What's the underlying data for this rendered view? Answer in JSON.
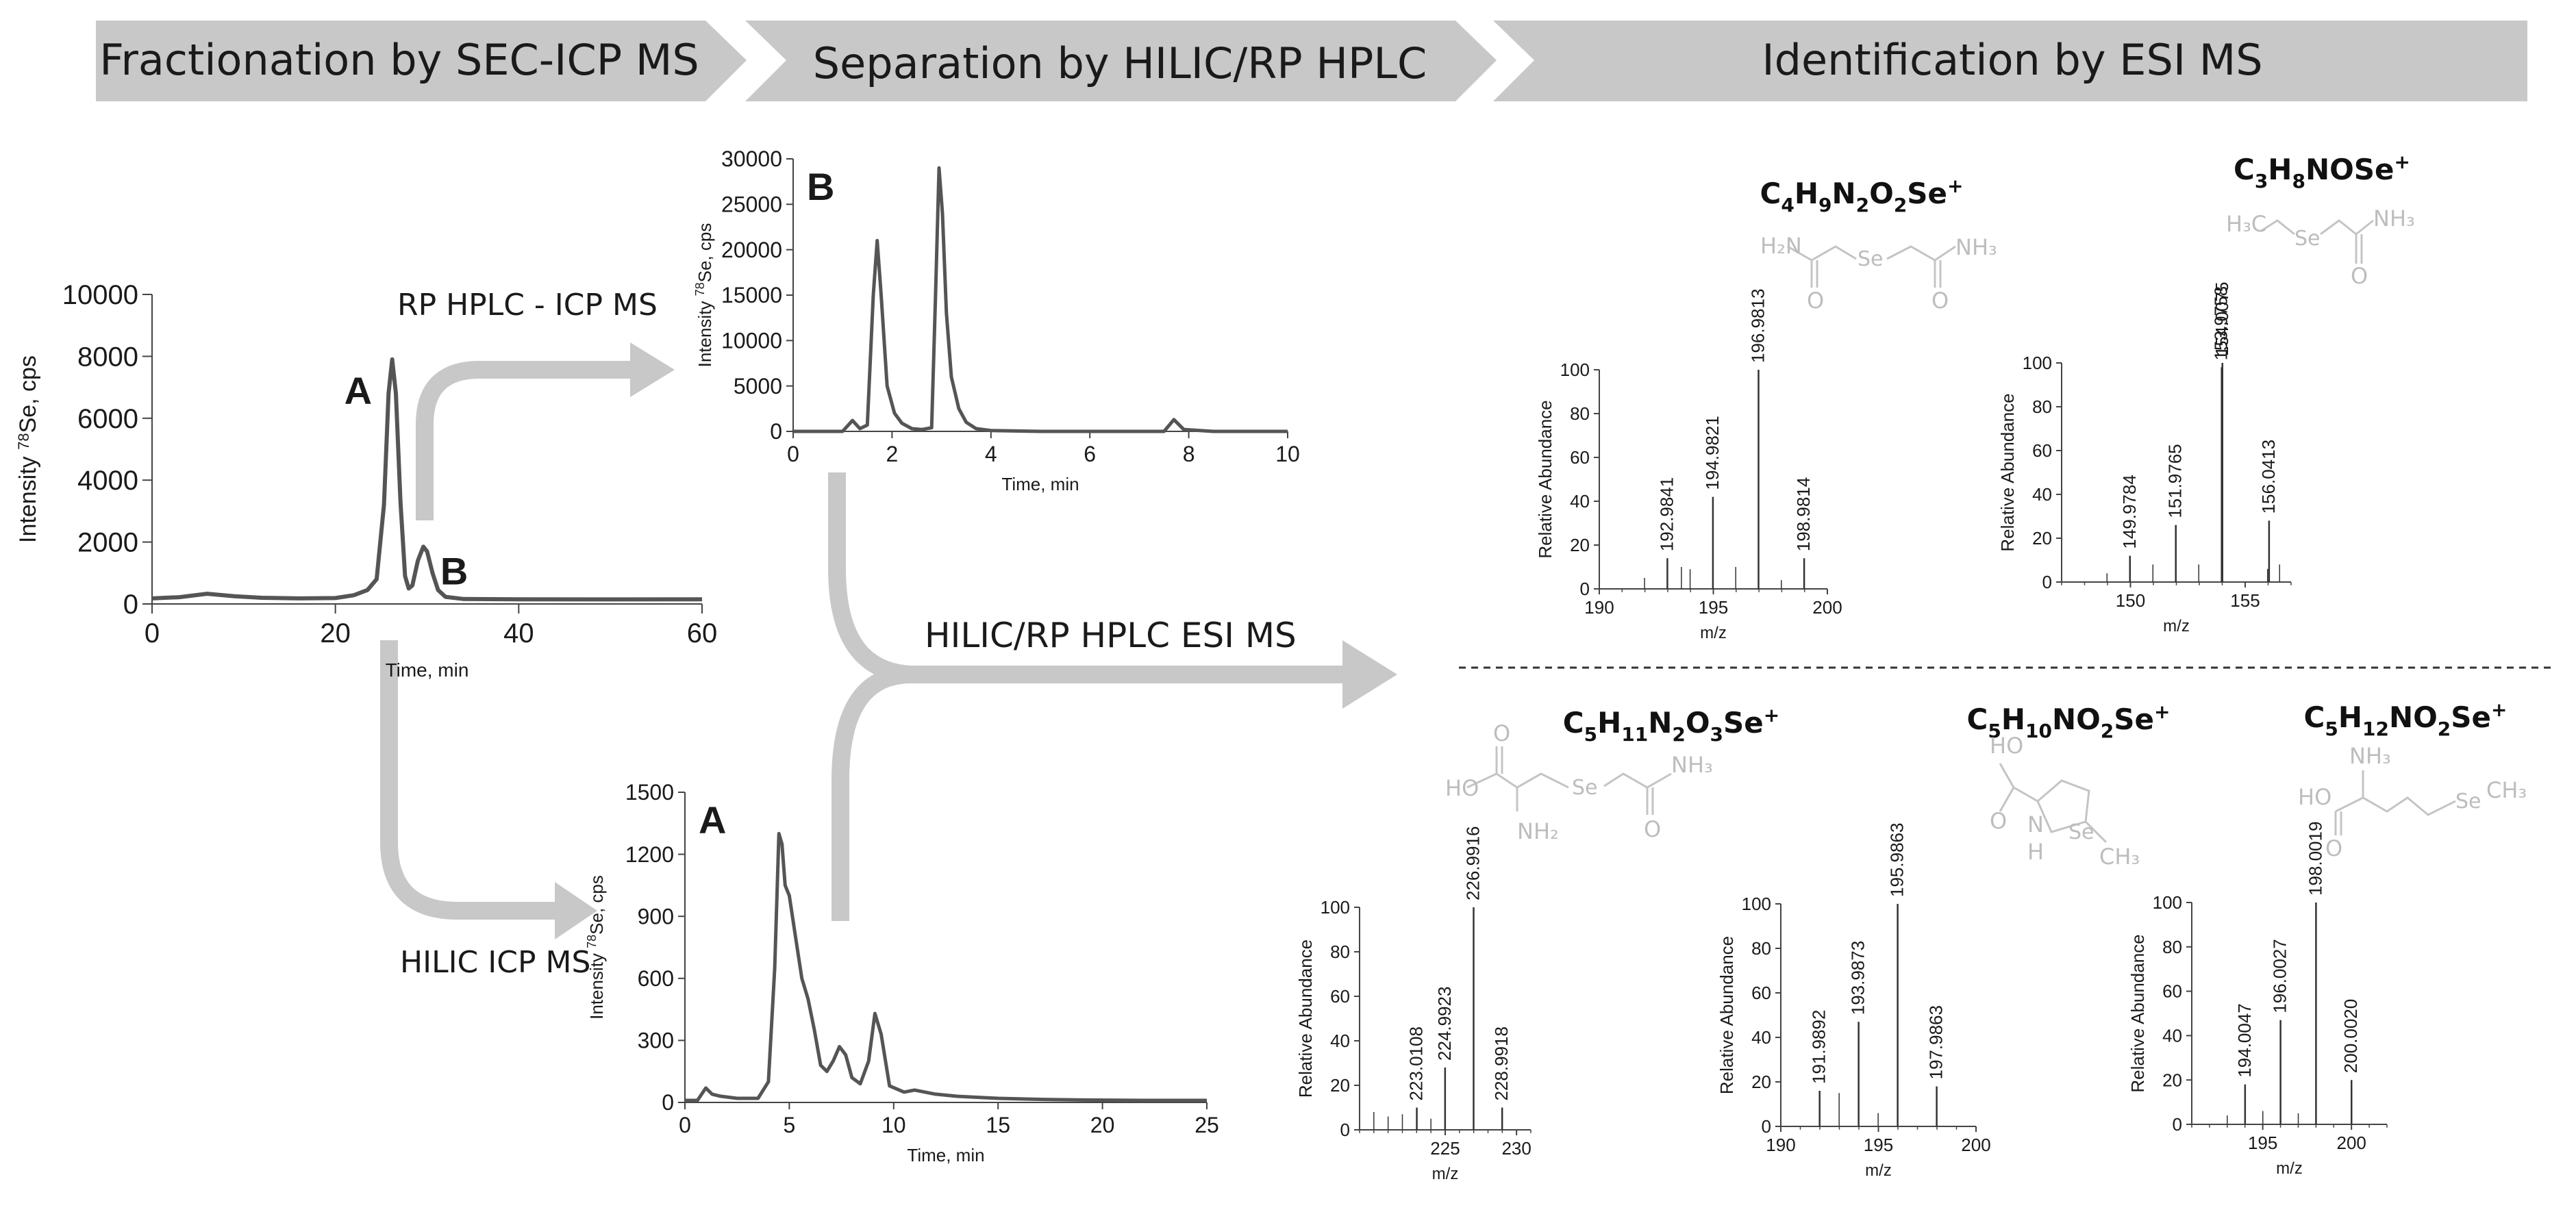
{
  "banner": {
    "steps": [
      "Fractionation by SEC-ICP MS",
      "Separation by HILIC/RP HPLC",
      "Identification by ESI MS"
    ]
  },
  "arrows": {
    "rp": "RP HPLC - ICP MS",
    "hilic": "HILIC ICP MS",
    "esi": "HILIC/RP HPLC ESI MS"
  },
  "chart_data": [
    {
      "id": "sec",
      "type": "line",
      "xlabel": "Time, min",
      "ylabel": "Intensity 78Se, cps",
      "xlim": [
        0,
        60
      ],
      "ylim": [
        0,
        10000
      ],
      "xticks": [
        0,
        20,
        40,
        60
      ],
      "yticks": [
        0,
        2000,
        4000,
        6000,
        8000,
        10000
      ],
      "peak_labels": [
        {
          "text": "A",
          "x": 26.2
        },
        {
          "text": "B",
          "x": 29.8
        }
      ],
      "series": [
        {
          "x": [
            0,
            3,
            6,
            9,
            12,
            16,
            20,
            22,
            23.5,
            24.5,
            25.3,
            25.8,
            26.2,
            26.6,
            27.1,
            27.6,
            28.0,
            28.4,
            29.0,
            29.6,
            30.0,
            30.6,
            31.2,
            32,
            34,
            40,
            50,
            60
          ],
          "y": [
            180,
            220,
            330,
            250,
            200,
            180,
            190,
            280,
            450,
            800,
            3200,
            6800,
            7900,
            6800,
            3300,
            900,
            500,
            600,
            1400,
            1850,
            1700,
            1000,
            450,
            230,
            160,
            150,
            145,
            150
          ]
        }
      ]
    },
    {
      "id": "rp",
      "type": "line",
      "xlabel": "Time, min",
      "ylabel": "Intensity 78Se, cps",
      "xlim": [
        0,
        10
      ],
      "ylim": [
        0,
        30000
      ],
      "xticks": [
        0,
        2,
        4,
        6,
        8,
        10
      ],
      "yticks": [
        0,
        5000,
        10000,
        15000,
        20000,
        25000,
        30000
      ],
      "panel_label": "B",
      "series": [
        {
          "x": [
            0,
            1.0,
            1.2,
            1.35,
            1.5,
            1.62,
            1.7,
            1.78,
            1.9,
            2.05,
            2.2,
            2.4,
            2.6,
            2.8,
            2.88,
            2.95,
            3.02,
            3.1,
            3.2,
            3.35,
            3.5,
            3.7,
            4.0,
            5,
            7.5,
            7.7,
            7.9,
            8.5,
            10
          ],
          "y": [
            0,
            0,
            1200,
            300,
            700,
            15000,
            21000,
            15000,
            5000,
            2000,
            900,
            300,
            200,
            400,
            15000,
            29000,
            24000,
            13000,
            6000,
            2500,
            1000,
            300,
            100,
            0,
            0,
            1300,
            200,
            0,
            0
          ]
        }
      ]
    },
    {
      "id": "hilic",
      "type": "line",
      "xlabel": "Time, min",
      "ylabel": "Intensity 78Se, cps",
      "xlim": [
        0,
        25
      ],
      "ylim": [
        0,
        1500
      ],
      "xticks": [
        0,
        5,
        10,
        15,
        20,
        25
      ],
      "yticks": [
        0,
        300,
        600,
        900,
        1200,
        1500
      ],
      "panel_label": "A",
      "series": [
        {
          "x": [
            0,
            0.6,
            1.0,
            1.3,
            1.7,
            2.5,
            3.5,
            4.0,
            4.3,
            4.5,
            4.65,
            4.8,
            5.0,
            5.3,
            5.6,
            5.9,
            6.2,
            6.5,
            6.8,
            7.1,
            7.4,
            7.7,
            8.0,
            8.4,
            8.8,
            9.1,
            9.4,
            9.8,
            10.5,
            11,
            12,
            13,
            14,
            15,
            17,
            19,
            22,
            25
          ],
          "y": [
            10,
            10,
            70,
            40,
            30,
            20,
            20,
            100,
            650,
            1300,
            1250,
            1050,
            1000,
            800,
            600,
            500,
            350,
            180,
            150,
            200,
            270,
            230,
            120,
            90,
            200,
            430,
            330,
            80,
            50,
            60,
            40,
            30,
            25,
            20,
            15,
            12,
            10,
            10
          ]
        }
      ]
    },
    {
      "id": "ms1",
      "type": "bar",
      "formula": "C4H9N2O2Se+",
      "xlabel": "m/z",
      "ylabel": "Relative Abundance",
      "xlim": [
        190,
        200
      ],
      "ylim": [
        0,
        100
      ],
      "xticks": [
        190,
        195,
        200
      ],
      "yticks": [
        0,
        20,
        40,
        60,
        80,
        100
      ],
      "peaks": [
        {
          "mz": 192.9841,
          "ab": 14,
          "label": "192.9841"
        },
        {
          "mz": 194.9821,
          "ab": 42,
          "label": "194.9821"
        },
        {
          "mz": 196.9813,
          "ab": 100,
          "label": "196.9813"
        },
        {
          "mz": 198.9814,
          "ab": 14,
          "label": "198.9814"
        },
        {
          "mz": 191.9841,
          "ab": 5
        },
        {
          "mz": 193.9821,
          "ab": 9
        },
        {
          "mz": 195.9821,
          "ab": 10
        },
        {
          "mz": 197.9821,
          "ab": 4
        },
        {
          "mz": 193.6,
          "ab": 10
        }
      ]
    },
    {
      "id": "ms2",
      "type": "bar",
      "formula": "C3H8NOSe+",
      "xlabel": "m/z",
      "ylabel": "Relative Abundance",
      "xlim": [
        147,
        157
      ],
      "ylim": [
        0,
        100
      ],
      "xticks": [
        150,
        155
      ],
      "yticks": [
        0,
        20,
        40,
        60,
        80,
        100
      ],
      "peaks": [
        {
          "mz": 149.9784,
          "ab": 12,
          "label": "149.9784"
        },
        {
          "mz": 151.9765,
          "ab": 26,
          "label": "151.9765"
        },
        {
          "mz": 153.9758,
          "ab": 98,
          "label": "153.9758"
        },
        {
          "mz": 154.0075,
          "ab": 100,
          "label": "154.0075"
        },
        {
          "mz": 156.0413,
          "ab": 28,
          "label": "156.0413"
        },
        {
          "mz": 148.9784,
          "ab": 4
        },
        {
          "mz": 150.9784,
          "ab": 8
        },
        {
          "mz": 152.9765,
          "ab": 8
        },
        {
          "mz": 155.9765,
          "ab": 6
        },
        {
          "mz": 156.5,
          "ab": 8
        }
      ]
    },
    {
      "id": "ms3",
      "type": "bar",
      "formula": "C5H11N2O3Se+",
      "xlabel": "m/z",
      "ylabel": "Relative Abundance",
      "xlim": [
        219,
        231
      ],
      "ylim": [
        0,
        100
      ],
      "xticks": [
        225,
        230
      ],
      "yticks": [
        0,
        20,
        40,
        60,
        80,
        100
      ],
      "peaks": [
        {
          "mz": 223.0108,
          "ab": 10,
          "label": "223.0108"
        },
        {
          "mz": 224.9923,
          "ab": 28,
          "label": "224.9923"
        },
        {
          "mz": 226.9916,
          "ab": 100,
          "label": "226.9916"
        },
        {
          "mz": 228.9918,
          "ab": 10,
          "label": "228.9918"
        },
        {
          "mz": 220.0,
          "ab": 8
        },
        {
          "mz": 221.0,
          "ab": 6
        },
        {
          "mz": 222.0,
          "ab": 7
        },
        {
          "mz": 224.0,
          "ab": 5
        }
      ]
    },
    {
      "id": "ms4",
      "type": "bar",
      "formula": "C5H10NO2Se+",
      "xlabel": "m/z",
      "ylabel": "Relative Abundance",
      "xlim": [
        190,
        200
      ],
      "ylim": [
        0,
        100
      ],
      "xticks": [
        190,
        195,
        200
      ],
      "yticks": [
        0,
        20,
        40,
        60,
        80,
        100
      ],
      "peaks": [
        {
          "mz": 191.9892,
          "ab": 16,
          "label": "191.9892"
        },
        {
          "mz": 193.9873,
          "ab": 47,
          "label": "193.9873"
        },
        {
          "mz": 195.9863,
          "ab": 100,
          "label": "195.9863"
        },
        {
          "mz": 197.9863,
          "ab": 18,
          "label": "197.9863"
        },
        {
          "mz": 192.9892,
          "ab": 15
        },
        {
          "mz": 194.9873,
          "ab": 6
        }
      ]
    },
    {
      "id": "ms5",
      "type": "bar",
      "formula": "C5H12NO2Se+",
      "xlabel": "m/z",
      "ylabel": "Relative Abundance",
      "xlim": [
        191,
        202
      ],
      "ylim": [
        0,
        100
      ],
      "xticks": [
        195,
        200
      ],
      "yticks": [
        0,
        20,
        40,
        60,
        80,
        100
      ],
      "peaks": [
        {
          "mz": 194.0047,
          "ab": 18,
          "label": "194.0047"
        },
        {
          "mz": 196.0027,
          "ab": 47,
          "label": "196.0027"
        },
        {
          "mz": 198.0019,
          "ab": 100,
          "label": "198.0019"
        },
        {
          "mz": 200.002,
          "ab": 20,
          "label": "200.0020"
        },
        {
          "mz": 195.0047,
          "ab": 6
        },
        {
          "mz": 197.0027,
          "ab": 5
        },
        {
          "mz": 193.0,
          "ab": 4
        }
      ]
    }
  ]
}
